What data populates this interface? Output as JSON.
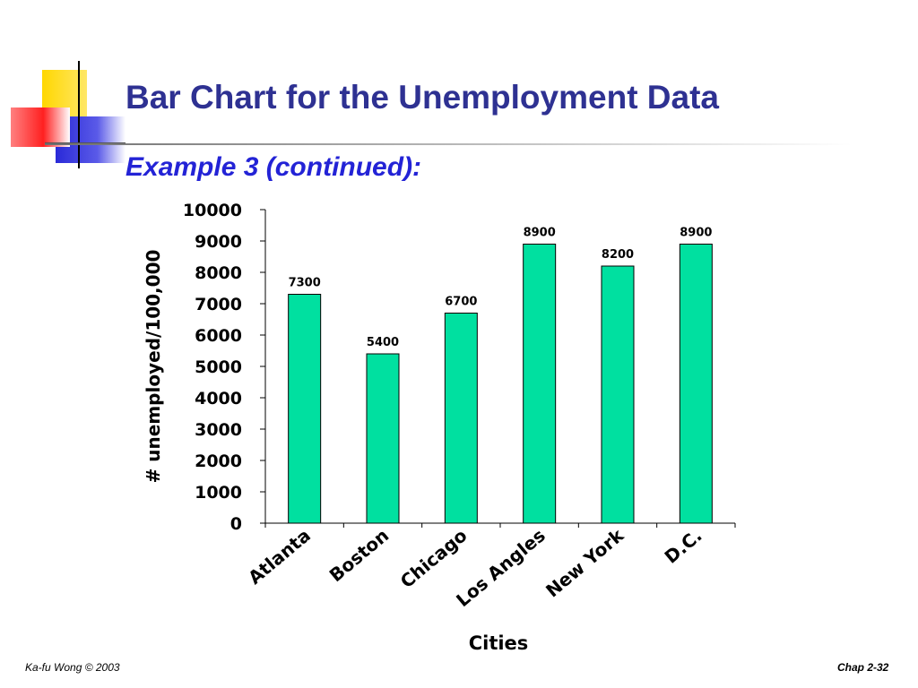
{
  "slide": {
    "title": "Bar Chart for the Unemployment Data",
    "subtitle": "Example 3 (continued):",
    "footer_left": "Ka-fu Wong © 2003",
    "footer_right": "Chap 2-32"
  },
  "colors": {
    "title": "#2e3192",
    "subtitle": "#2323d6",
    "bar_fill": "#00e0a0",
    "bar_stroke": "#000000",
    "deco_yellow": "#ffd700",
    "deco_red": "#ff2020",
    "deco_blue": "#2a2ad8"
  },
  "chart_data": {
    "type": "bar",
    "categories": [
      "Atlanta",
      "Boston",
      "Chicago",
      "Los Angles",
      "New York",
      "D.C."
    ],
    "values": [
      7300,
      5400,
      6700,
      8900,
      8200,
      8900
    ],
    "data_labels": [
      "7300",
      "5400",
      "6700",
      "8900",
      "8200",
      "8900"
    ],
    "xlabel": "Cities",
    "ylabel": "# unemployed/100,000",
    "ylim": [
      0,
      10000
    ],
    "yticks": [
      0,
      1000,
      2000,
      3000,
      4000,
      5000,
      6000,
      7000,
      8000,
      9000,
      10000
    ],
    "grid": false,
    "legend": "none"
  }
}
